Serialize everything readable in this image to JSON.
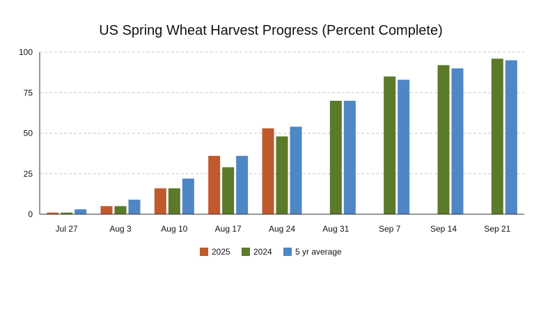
{
  "chart_data": {
    "type": "bar",
    "title": "US Spring Wheat Harvest Progress (Percent Complete)",
    "categories": [
      "Jul 27",
      "Aug 3",
      "Aug 10",
      "Aug 17",
      "Aug 24",
      "Aug 31",
      "Sep 7",
      "Sep 14",
      "Sep 21"
    ],
    "series": [
      {
        "name": "2025",
        "color": "#c0592b",
        "values": [
          1,
          5,
          16,
          36,
          53,
          null,
          null,
          null,
          null
        ]
      },
      {
        "name": "2024",
        "color": "#5b7a2a",
        "values": [
          1,
          5,
          16,
          29,
          48,
          70,
          85,
          92,
          96
        ]
      },
      {
        "name": "5 yr average",
        "color": "#4f86c6",
        "values": [
          3,
          9,
          22,
          36,
          54,
          70,
          83,
          90,
          95
        ]
      }
    ],
    "ylim": [
      0,
      100
    ],
    "yticks": [
      0,
      25,
      50,
      75,
      100
    ],
    "grid": true,
    "legend_position": "bottom-center"
  }
}
